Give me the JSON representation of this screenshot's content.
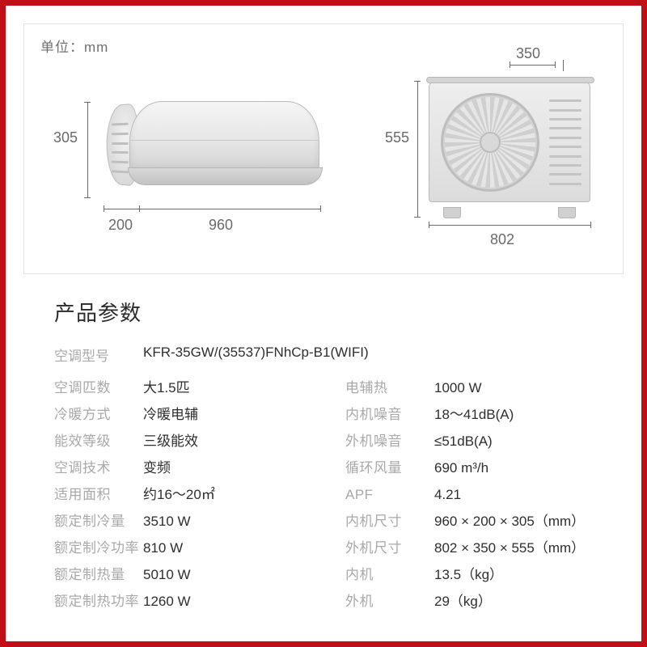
{
  "colors": {
    "frame": "#c10f1a",
    "label": "#a9a9a9",
    "value": "#2e2e2e",
    "dim": "#6a6a6a",
    "panel_border": "#e2e2e2"
  },
  "diagram": {
    "unit_label": "单位：mm",
    "indoor": {
      "height": "305",
      "depth": "200",
      "width": "960"
    },
    "outdoor": {
      "depth": "350",
      "height": "555",
      "width": "802"
    }
  },
  "spec": {
    "title": "产品参数",
    "model_label": "空调型号",
    "model_value": "KFR-35GW/(35537)FNhCp-B1(WIFI)",
    "left": [
      {
        "lab": "空调匹数",
        "val": "大1.5匹"
      },
      {
        "lab": "冷暖方式",
        "val": "冷暖电辅"
      },
      {
        "lab": "能效等级",
        "val": "三级能效"
      },
      {
        "lab": "空调技术",
        "val": "变频"
      },
      {
        "lab": "适用面积",
        "val": "约16～20㎡"
      },
      {
        "lab": "额定制冷量",
        "val": "3510 W"
      },
      {
        "lab": "额定制冷功率",
        "val": "810 W"
      },
      {
        "lab": "额定制热量",
        "val": "5010 W"
      },
      {
        "lab": "额定制热功率",
        "val": "1260 W"
      }
    ],
    "right": [
      {
        "lab": "电辅热",
        "val": "1000 W"
      },
      {
        "lab": "内机噪音",
        "val": "18～41dB(A)"
      },
      {
        "lab": "外机噪音",
        "val": "≤51dB(A)"
      },
      {
        "lab": "循环风量",
        "val": "690 m³/h"
      },
      {
        "lab": "APF",
        "val": "4.21"
      },
      {
        "lab": "内机尺寸",
        "val": "960 × 200 × 305（mm）"
      },
      {
        "lab": "外机尺寸",
        "val": "802 × 350 × 555（mm）"
      },
      {
        "lab": "内机",
        "val": "13.5（kg）"
      },
      {
        "lab": "外机",
        "val": "29（kg）"
      }
    ]
  }
}
